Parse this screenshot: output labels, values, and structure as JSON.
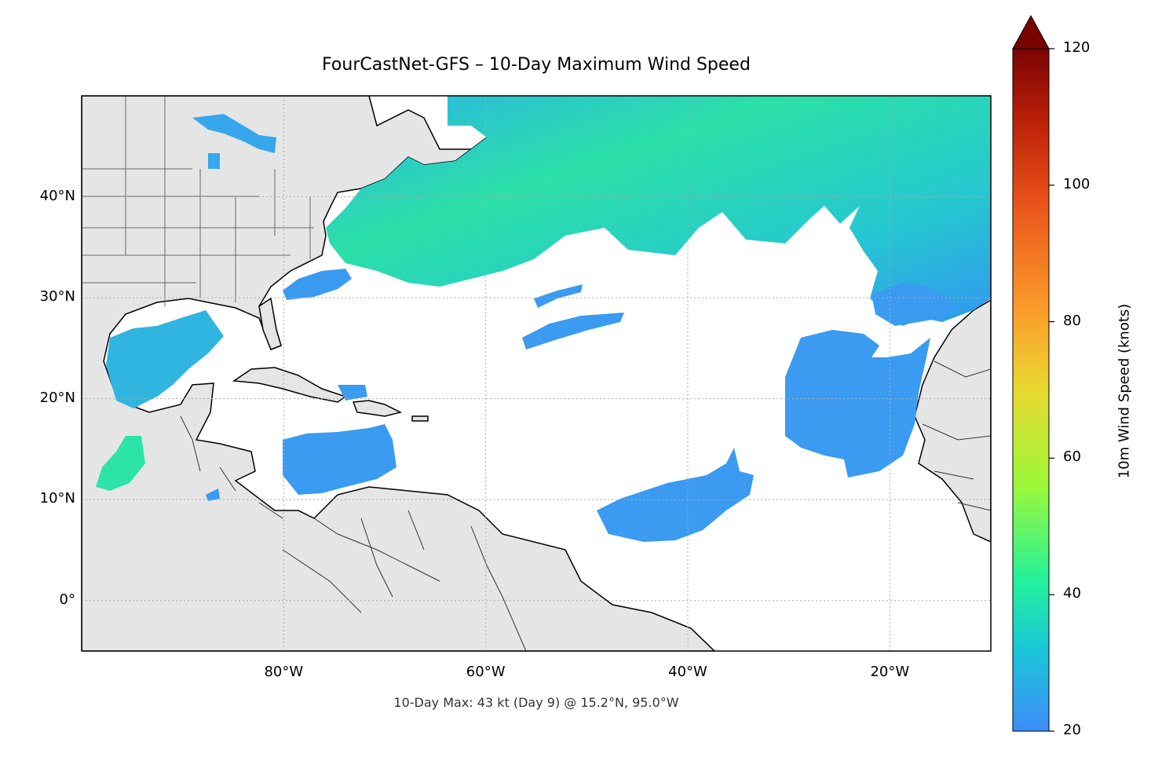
{
  "title": "FourCastNet-GFS – 10-Day Maximum Wind Speed",
  "subtitle": "10-Day Max: 43 kt (Day 9) @ 15.2°N, 95.0°W",
  "map": {
    "extent_lon": [
      -100,
      -10
    ],
    "extent_lat": [
      -5,
      50
    ],
    "lat_ticks": [
      {
        "value": 40,
        "label": "40°N"
      },
      {
        "value": 30,
        "label": "30°N"
      },
      {
        "value": 20,
        "label": "20°N"
      },
      {
        "value": 10,
        "label": "10°N"
      },
      {
        "value": 0,
        "label": "0°"
      }
    ],
    "lon_ticks": [
      {
        "value": -80,
        "label": "80°W"
      },
      {
        "value": -60,
        "label": "60°W"
      },
      {
        "value": -40,
        "label": "40°W"
      },
      {
        "value": -20,
        "label": "20°W"
      }
    ],
    "land_color": "#e5e5e5",
    "ocean_color": "#ffffff",
    "gridlines": true,
    "max_marker": {
      "lat": 15.2,
      "lon": -95.0,
      "value_kt": 43,
      "day": 9
    }
  },
  "colorbar": {
    "label": "10m Wind Speed (knots)",
    "min": 20,
    "max": 120,
    "ticks": [
      {
        "value": 120,
        "label": "120"
      },
      {
        "value": 100,
        "label": "100"
      },
      {
        "value": 80,
        "label": "80"
      },
      {
        "value": 60,
        "label": "60"
      },
      {
        "value": 40,
        "label": "40"
      },
      {
        "value": 20,
        "label": "20"
      }
    ],
    "extend": "max",
    "colors": [
      "#3e8cf8",
      "#1bc6d8",
      "#22f09a",
      "#9bf838",
      "#e8d831",
      "#fb9a2a",
      "#e8511a",
      "#b81e08",
      "#7a0402"
    ]
  }
}
